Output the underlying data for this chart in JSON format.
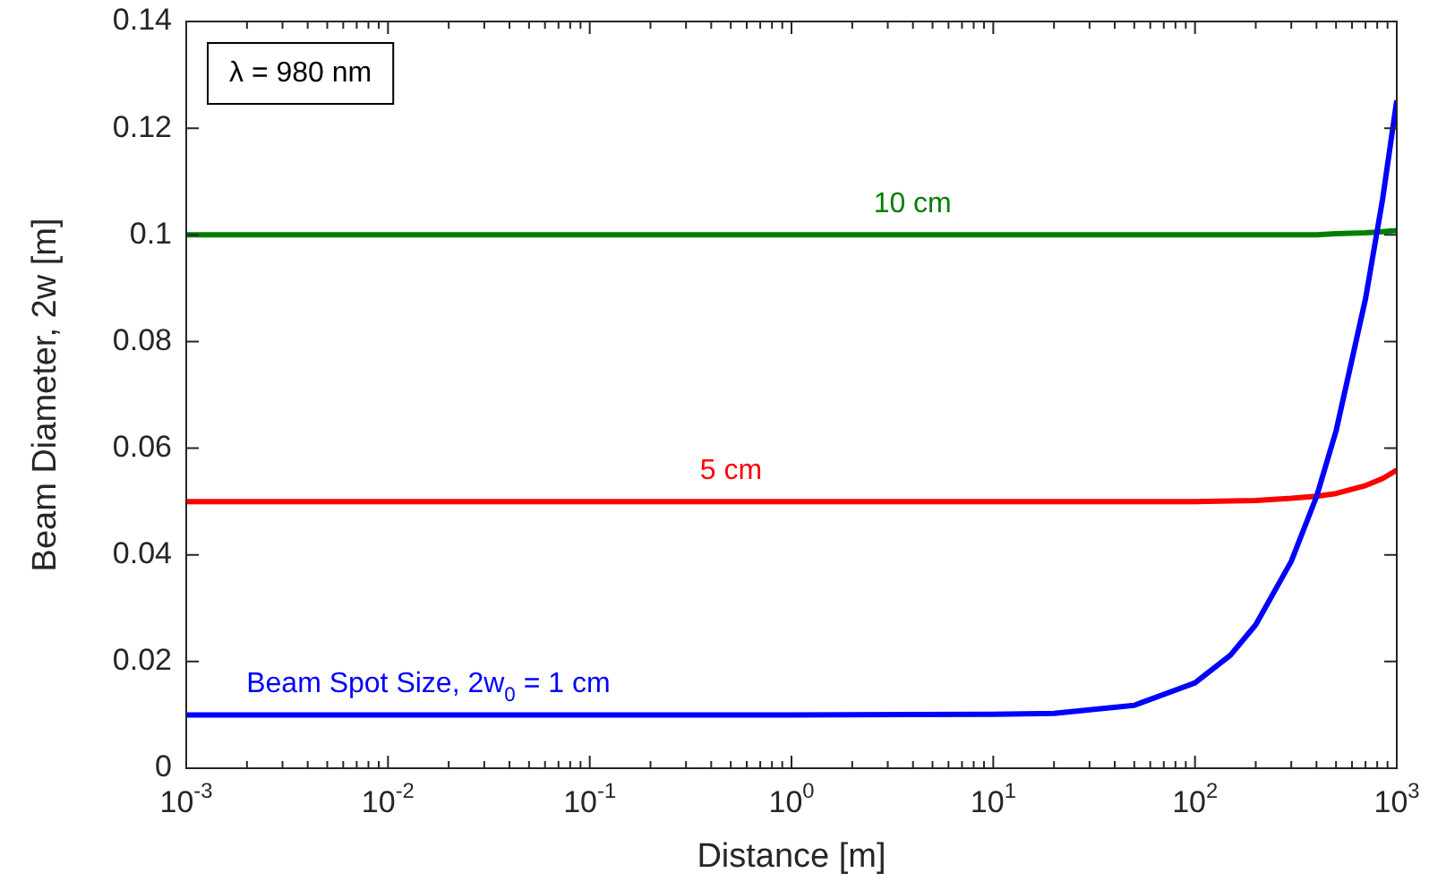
{
  "chart_data": {
    "type": "line",
    "xlabel": "Distance [m]",
    "ylabel": "Beam Diameter, 2w [m]",
    "log": "x",
    "xlim": [
      0.001,
      1000
    ],
    "xticks": [
      {
        "value": 0.001,
        "label": "10$^{-3}$"
      },
      {
        "value": 0.01,
        "label": "10$^{-2}$"
      },
      {
        "value": 0.1,
        "label": "10$^{-1}$"
      },
      {
        "value": 1,
        "label": "10$^{0}$"
      },
      {
        "value": 10,
        "label": "10$^{1}$"
      },
      {
        "value": 100,
        "label": "10$^{2}$"
      },
      {
        "value": 1000,
        "label": "10$^{3}$"
      }
    ],
    "ylim": [
      0,
      0.14
    ],
    "yticks": [
      0,
      0.02,
      0.04,
      0.06,
      0.08,
      0.1,
      0.12,
      0.14
    ],
    "grid": false,
    "legend": false,
    "marker": "none",
    "line_style": "solid",
    "annotations": [
      "λ = 980 nm"
    ],
    "x": [
      0.001,
      0.01,
      0.1,
      1,
      10,
      20,
      50,
      100,
      150,
      200,
      300,
      400,
      500,
      700,
      850,
      1000
    ],
    "series": [
      {
        "name": "Beam Spot Size, 2w$_{0}$ = 1 cm",
        "color": "#0000ff",
        "values": [
          0.01,
          0.01,
          0.01,
          0.01,
          0.0101,
          0.0103,
          0.0118,
          0.016,
          0.0212,
          0.0269,
          0.0388,
          0.0509,
          0.0632,
          0.088,
          0.1066,
          0.1252
        ]
      },
      {
        "name": "5 cm",
        "color": "#ff0000",
        "values": [
          0.05,
          0.05,
          0.05,
          0.05,
          0.05,
          0.05,
          0.05,
          0.05,
          0.0501,
          0.0502,
          0.0506,
          0.051,
          0.0515,
          0.053,
          0.0543,
          0.0559
        ]
      },
      {
        "name": "10 cm",
        "color": "#007f00",
        "values": [
          0.1,
          0.1,
          0.1,
          0.1,
          0.1,
          0.1,
          0.1,
          0.1,
          0.1,
          0.1,
          0.1,
          0.1,
          0.1002,
          0.1004,
          0.1006,
          0.1008
        ]
      }
    ]
  }
}
